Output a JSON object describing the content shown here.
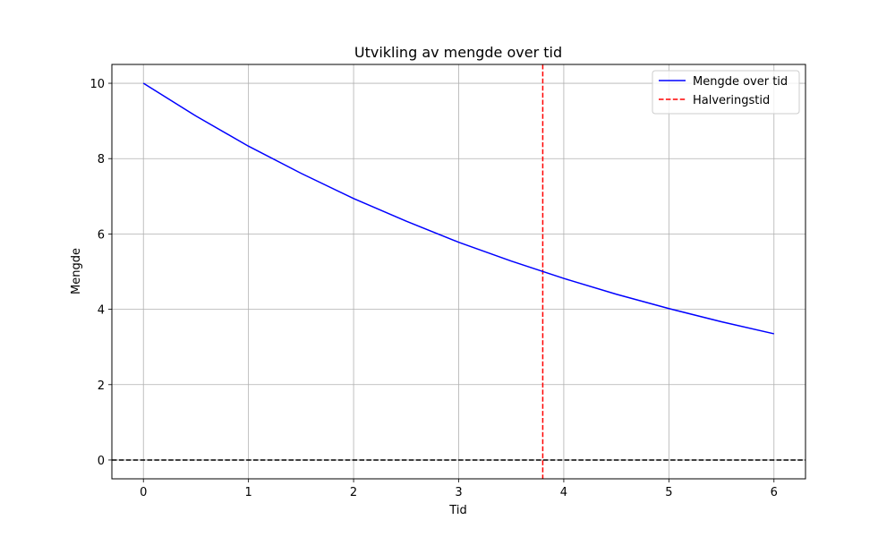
{
  "chart_data": {
    "type": "line",
    "title": "Utvikling av mengde over tid",
    "xlabel": "Tid",
    "ylabel": "Mengde",
    "xlim": [
      -0.3,
      6.3
    ],
    "ylim": [
      -0.5,
      10.5
    ],
    "xticks": [
      0,
      1,
      2,
      3,
      4,
      5,
      6
    ],
    "yticks": [
      0,
      2,
      4,
      6,
      8,
      10
    ],
    "grid": true,
    "legend_position": "top-right",
    "series": [
      {
        "name": "Mengde over tid",
        "style": "solid",
        "color": "#0000ff",
        "x": [
          0,
          0.5,
          1,
          1.5,
          2,
          2.5,
          3,
          3.5,
          4,
          4.5,
          5,
          5.5,
          6
        ],
        "y": [
          10.0,
          9.13,
          8.33,
          7.61,
          6.94,
          6.34,
          5.78,
          5.28,
          4.82,
          4.4,
          4.02,
          3.67,
          3.35
        ]
      }
    ],
    "reference_lines": [
      {
        "name": "Halveringstid",
        "orientation": "vertical",
        "value": 3.8,
        "color": "#ff0000",
        "style": "dashed",
        "in_legend": true
      },
      {
        "name": "baseline",
        "orientation": "horizontal",
        "value": 0,
        "color": "#000000",
        "style": "dashed",
        "in_legend": false
      }
    ],
    "legend": [
      "Mengde over tid",
      "Halveringstid"
    ]
  }
}
